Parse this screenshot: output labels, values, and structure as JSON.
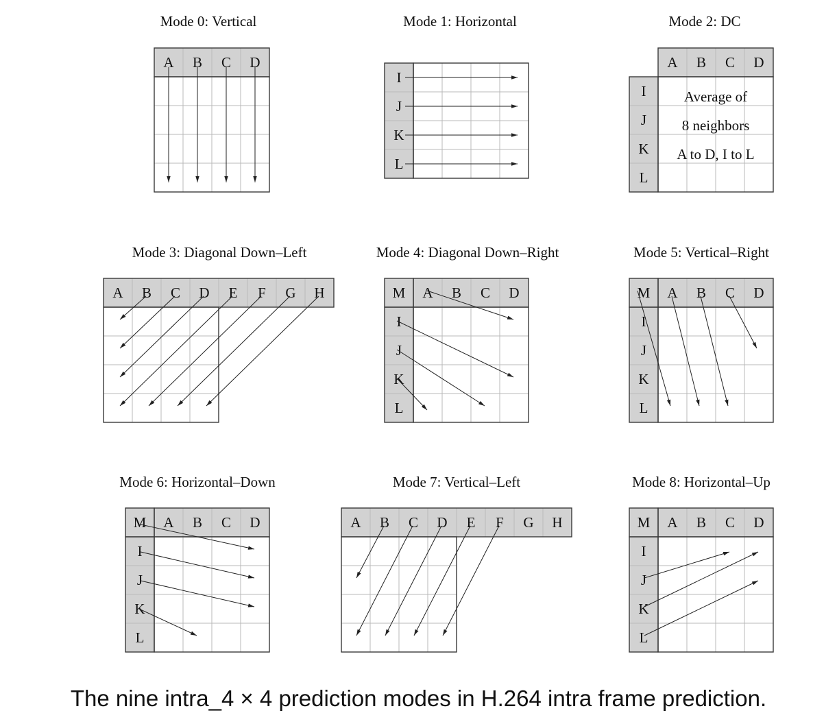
{
  "caption": "The nine intra_4 × 4 prediction modes in H.264 intra frame prediction.",
  "dc_text": [
    "Average of",
    "8 neighbors",
    "A to D, I to L"
  ],
  "modes": [
    {
      "title": "Mode 0: Vertical",
      "top_labels": [
        "A",
        "B",
        "C",
        "D"
      ],
      "left_labels": []
    },
    {
      "title": "Mode 1: Horizontal",
      "top_labels": [],
      "left_labels": [
        "I",
        "J",
        "K",
        "L"
      ]
    },
    {
      "title": "Mode 2: DC",
      "top_labels": [
        "A",
        "B",
        "C",
        "D"
      ],
      "left_labels": [
        "I",
        "J",
        "K",
        "L"
      ]
    },
    {
      "title": "Mode 3: Diagonal Down–Left",
      "top_labels": [
        "A",
        "B",
        "C",
        "D",
        "E",
        "F",
        "G",
        "H"
      ],
      "left_labels": []
    },
    {
      "title": "Mode 4: Diagonal Down–Right",
      "corner_label": "M",
      "top_labels": [
        "A",
        "B",
        "C",
        "D"
      ],
      "left_labels": [
        "I",
        "J",
        "K",
        "L"
      ]
    },
    {
      "title": "Mode 5: Vertical–Right",
      "corner_label": "M",
      "top_labels": [
        "A",
        "B",
        "C",
        "D"
      ],
      "left_labels": [
        "I",
        "J",
        "K",
        "L"
      ]
    },
    {
      "title": "Mode 6: Horizontal–Down",
      "corner_label": "M",
      "top_labels": [
        "A",
        "B",
        "C",
        "D"
      ],
      "left_labels": [
        "I",
        "J",
        "K",
        "L"
      ]
    },
    {
      "title": "Mode 7: Vertical–Left",
      "top_labels": [
        "A",
        "B",
        "C",
        "D",
        "E",
        "F",
        "G",
        "H"
      ],
      "left_labels": []
    },
    {
      "title": "Mode 8: Horizontal–Up",
      "corner_label": "M",
      "top_labels": [
        "A",
        "B",
        "C",
        "D"
      ],
      "left_labels": [
        "I",
        "J",
        "K",
        "L"
      ]
    }
  ]
}
